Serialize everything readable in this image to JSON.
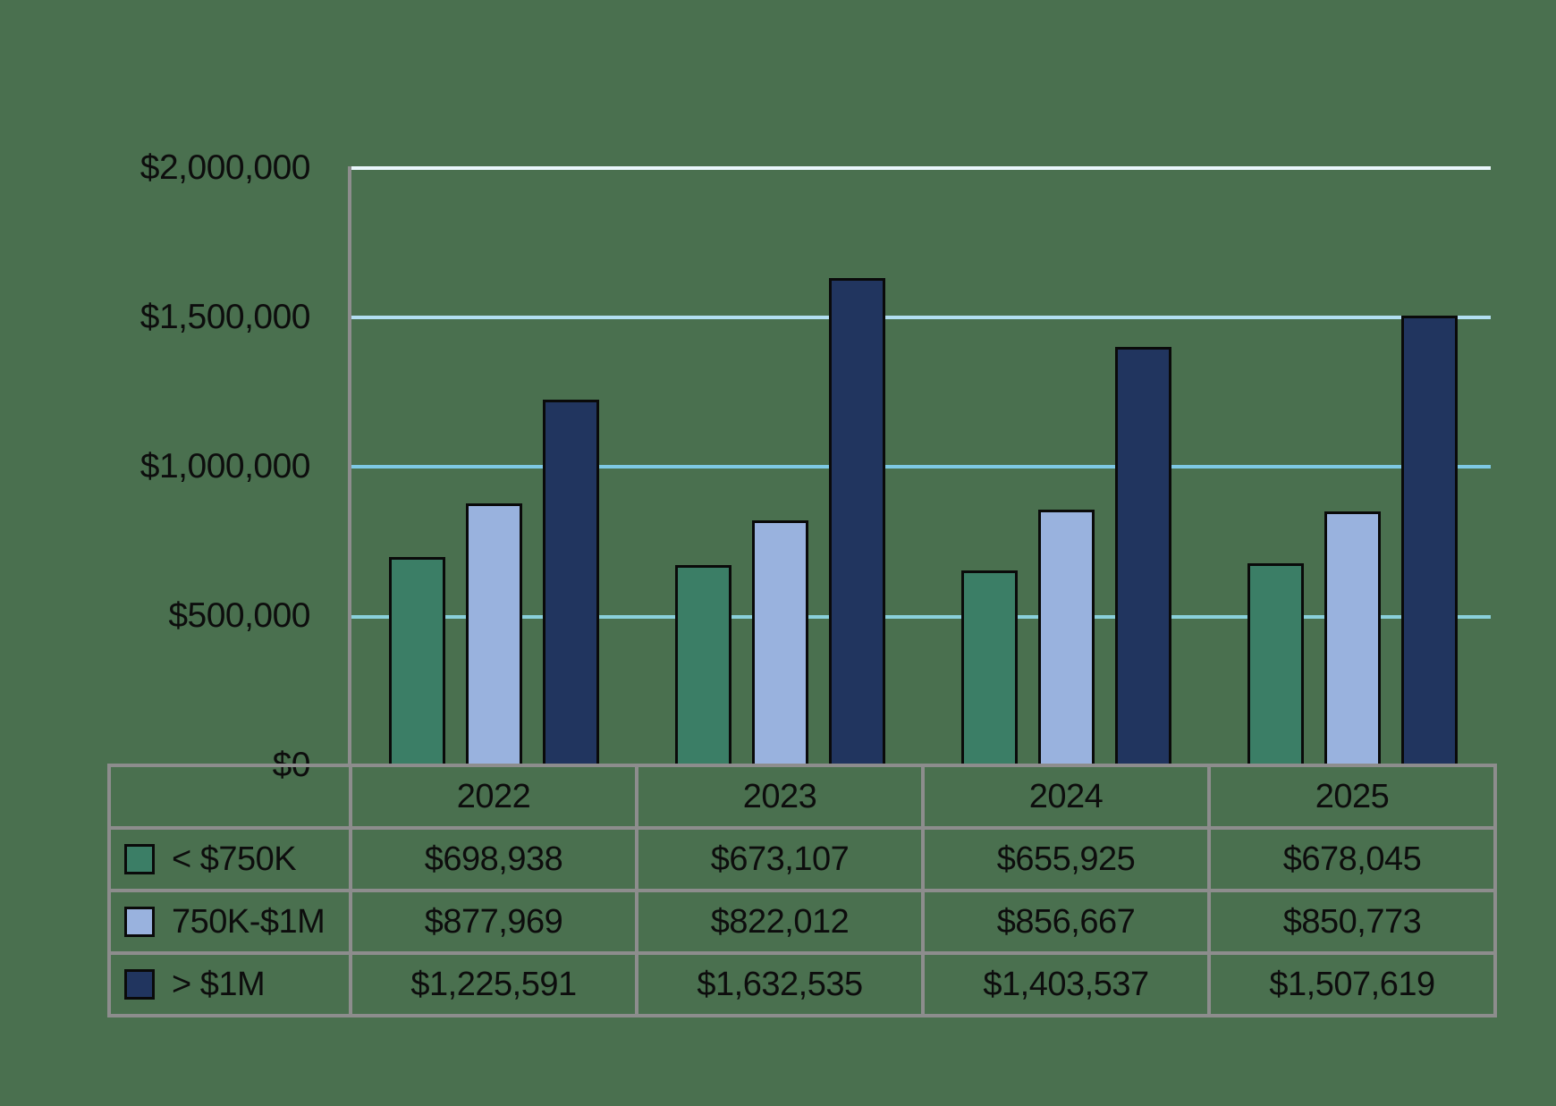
{
  "chart_data": {
    "type": "bar",
    "title": "",
    "xlabel": "",
    "ylabel": "",
    "categories": [
      "2022",
      "2023",
      "2024",
      "2025"
    ],
    "series": [
      {
        "name": "< $750K",
        "values": [
          698938,
          673107,
          655925,
          678045
        ]
      },
      {
        "name": "750K-$1M",
        "values": [
          877969,
          822012,
          856667,
          850773
        ]
      },
      {
        "name": "> $1M",
        "values": [
          1225591,
          1632535,
          1403537,
          1507619
        ]
      }
    ],
    "value_labels": [
      [
        "$698,938",
        "$673,107",
        "$655,925",
        "$678,045"
      ],
      [
        "$877,969",
        "$822,012",
        "$856,667",
        "$850,773"
      ],
      [
        "$1,225,591",
        "$1,632,535",
        "$1,403,537",
        "$1,507,619"
      ]
    ],
    "y_ticks": [
      "$2,000,000",
      "$1,500,000",
      "$1,000,000",
      "$500,000",
      "$0"
    ],
    "ylim": [
      0,
      2000000
    ],
    "grid": "horizontal",
    "legend_position": "table-rows-left"
  },
  "colors": {
    "background": "#4A704F",
    "series": [
      "#3B7E66",
      "#99B2DE",
      "#21355F"
    ],
    "bar_outline": "#0a0a0a",
    "gridlines": [
      "#EAF6FC",
      "#B3DEF1",
      "#7EC9E4",
      "#8AD0DB"
    ],
    "axis": "#8D8D8D",
    "table_border": "#8D8D8D",
    "text": "#0d0d0d"
  }
}
